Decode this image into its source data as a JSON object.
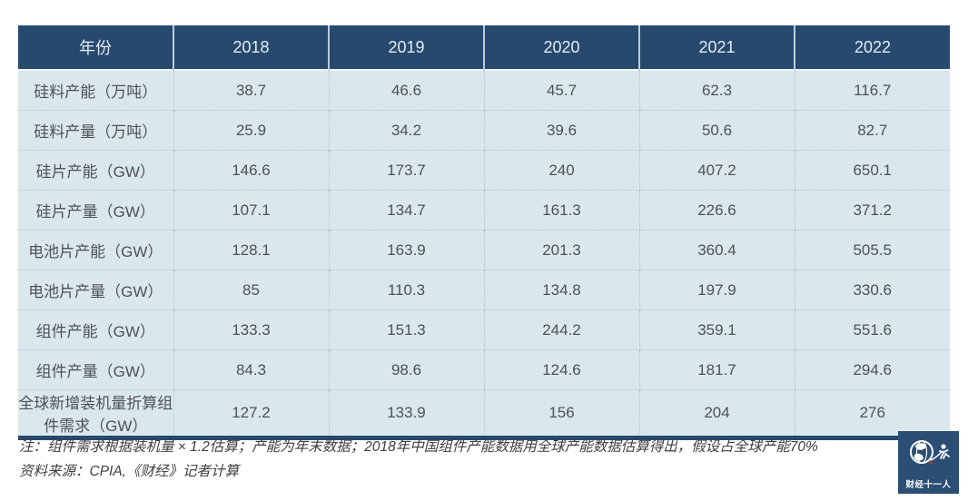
{
  "chart_data": {
    "type": "table",
    "columns": [
      "年份",
      "2018",
      "2019",
      "2020",
      "2021",
      "2022"
    ],
    "rows": [
      {
        "label": "硅料产能（万吨）",
        "values": [
          "38.7",
          "46.6",
          "45.7",
          "62.3",
          "116.7"
        ]
      },
      {
        "label": "硅料产量（万吨）",
        "values": [
          "25.9",
          "34.2",
          "39.6",
          "50.6",
          "82.7"
        ]
      },
      {
        "label": "硅片产能（GW）",
        "values": [
          "146.6",
          "173.7",
          "240",
          "407.2",
          "650.1"
        ]
      },
      {
        "label": "硅片产量（GW）",
        "values": [
          "107.1",
          "134.7",
          "161.3",
          "226.6",
          "371.2"
        ]
      },
      {
        "label": "电池片产能（GW）",
        "values": [
          "128.1",
          "163.9",
          "201.3",
          "360.4",
          "505.5"
        ]
      },
      {
        "label": "电池片产量（GW）",
        "values": [
          "85",
          "110.3",
          "134.8",
          "197.9",
          "330.6"
        ]
      },
      {
        "label": "组件产能（GW）",
        "values": [
          "133.3",
          "151.3",
          "244.2",
          "359.1",
          "551.6"
        ]
      },
      {
        "label": "组件产量（GW）",
        "values": [
          "84.3",
          "98.6",
          "124.6",
          "181.7",
          "294.6"
        ]
      },
      {
        "label": "全球新增装机量折算组件需求（GW）",
        "values": [
          "127.2",
          "133.9",
          "156",
          "204",
          "276"
        ]
      }
    ]
  },
  "footnote": {
    "note": "注：组件需求根据装机量 × 1.2估算；产能为年末数据；2018年中国组件产能数据用全球产能数据估算得出，假设占全球产能70%",
    "source": "资料来源：CPIA,《财经》记者计算"
  },
  "logo": {
    "text": "财经十一人"
  },
  "colors": {
    "header_bg": "#27496D",
    "row_bg": "#DAE8EE",
    "bottom_border": "#27496D",
    "logo_bg": "#2B4E74"
  }
}
